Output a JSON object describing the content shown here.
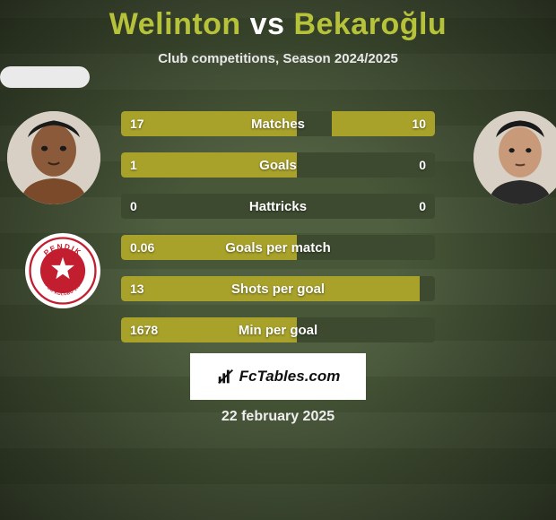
{
  "header": {
    "title_left": "Welinton",
    "title_vs": "vs",
    "title_right": "Bekaroğlu",
    "title_color_left": "#b6c23a",
    "title_color_vs": "#ffffff",
    "title_color_right": "#b6c23a",
    "subtitle": "Club competitions, Season 2024/2025"
  },
  "players": {
    "left_name": "Welinton",
    "right_name": "Bekaroğlu",
    "left_skin": "#8a5a3a",
    "right_skin": "#c89a7a"
  },
  "club": {
    "left_top": "PENDIK",
    "left_bottom": "SPOR KULÜBÜ 1950",
    "primary": "#c31e2f",
    "secondary": "#ffffff"
  },
  "chart": {
    "track_color": "#3d4a2f",
    "fill_color": "#a8a22a",
    "rows": [
      {
        "label": "Matches",
        "left": "17",
        "right": "10",
        "left_pct": 56,
        "right_pct": 33
      },
      {
        "label": "Goals",
        "left": "1",
        "right": "0",
        "left_pct": 56,
        "right_pct": 0
      },
      {
        "label": "Hattricks",
        "left": "0",
        "right": "0",
        "left_pct": 0,
        "right_pct": 0
      },
      {
        "label": "Goals per match",
        "left": "0.06",
        "right": "",
        "left_pct": 56,
        "right_pct": 0
      },
      {
        "label": "Shots per goal",
        "left": "13",
        "right": "",
        "left_pct": 95,
        "right_pct": 0
      },
      {
        "label": "Min per goal",
        "left": "1678",
        "right": "",
        "left_pct": 56,
        "right_pct": 0
      }
    ]
  },
  "watermark": {
    "text": "FcTables.com"
  },
  "date": "22 february 2025",
  "theme": {
    "bg": "#4a5a3a",
    "text": "#ffffff"
  }
}
